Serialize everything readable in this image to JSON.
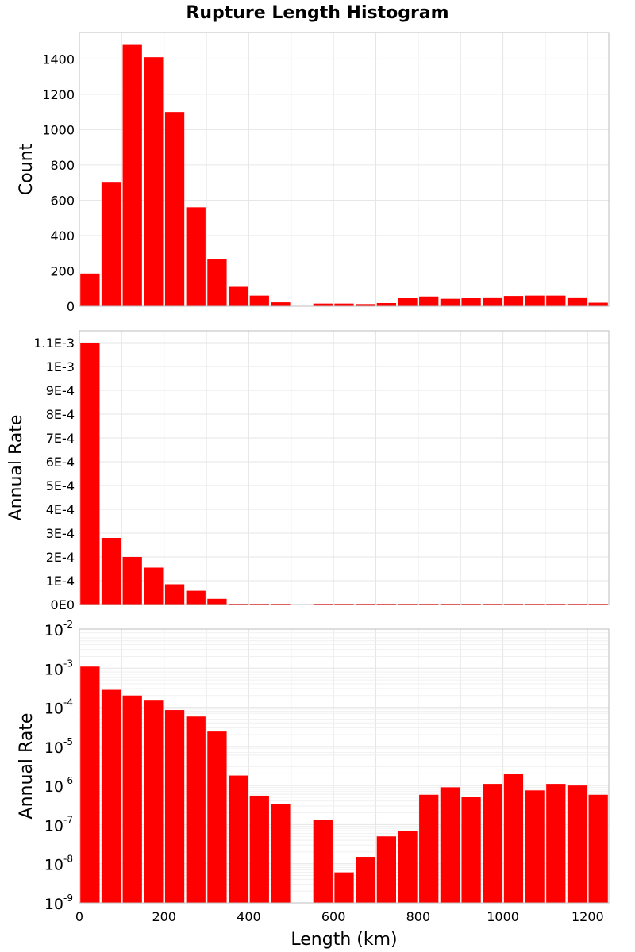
{
  "title": "Rupture Length Histogram",
  "colors": {
    "bar": "#ff0000",
    "grid": "#e6e6e6",
    "frame": "#bdbdbd"
  },
  "chart_data": [
    {
      "type": "bar",
      "name": "count-panel",
      "ylabel": "Count",
      "xlabel": "",
      "bin_width": 50,
      "x": [
        0,
        50,
        100,
        150,
        200,
        250,
        300,
        350,
        400,
        450,
        500,
        550,
        600,
        650,
        700,
        750,
        800,
        850,
        900,
        950,
        1000,
        1050,
        1100,
        1150,
        1200
      ],
      "values": [
        185,
        700,
        1480,
        1410,
        1100,
        560,
        265,
        110,
        60,
        22,
        0,
        15,
        15,
        12,
        18,
        45,
        55,
        42,
        45,
        50,
        58,
        60,
        60,
        50,
        20
      ],
      "xlim": [
        0,
        1250
      ],
      "ylim": [
        0,
        1550
      ],
      "yticks": [
        0,
        200,
        400,
        600,
        800,
        1000,
        1200,
        1400
      ],
      "ytick_labels": [
        "0",
        "200",
        "400",
        "600",
        "800",
        "1000",
        "1200",
        "1400"
      ],
      "yscale": "linear"
    },
    {
      "type": "bar",
      "name": "rate-linear-panel",
      "ylabel": "Annual Rate",
      "xlabel": "",
      "bin_width": 50,
      "x": [
        0,
        50,
        100,
        150,
        200,
        250,
        300,
        350,
        400,
        450,
        500,
        550,
        600,
        650,
        700,
        750,
        800,
        850,
        900,
        950,
        1000,
        1050,
        1100,
        1150,
        1200
      ],
      "values": [
        0.0011,
        0.00028,
        0.0002,
        0.000155,
        8.5e-05,
        5.8e-05,
        2.4e-05,
        1.8e-06,
        5.5e-07,
        3.3e-07,
        0,
        1.3e-07,
        6e-09,
        1.5e-08,
        5e-08,
        7e-08,
        5.8e-07,
        9e-07,
        5.2e-07,
        1.1e-06,
        2e-06,
        7.5e-07,
        1.1e-06,
        1e-06,
        5.8e-07
      ],
      "xlim": [
        0,
        1250
      ],
      "ylim": [
        0,
        0.00115
      ],
      "yticks": [
        0,
        0.0001,
        0.0002,
        0.0003,
        0.0004,
        0.0005,
        0.0006,
        0.0007,
        0.0008,
        0.0009,
        0.001,
        0.0011
      ],
      "ytick_labels": [
        "0E0",
        "1E-4",
        "2E-4",
        "3E-4",
        "4E-4",
        "5E-4",
        "6E-4",
        "7E-4",
        "8E-4",
        "9E-4",
        "1E-3",
        "1.1E-3"
      ],
      "yscale": "linear"
    },
    {
      "type": "bar",
      "name": "rate-log-panel",
      "ylabel": "Annual Rate",
      "xlabel": "Length (km)",
      "bin_width": 50,
      "x": [
        0,
        50,
        100,
        150,
        200,
        250,
        300,
        350,
        400,
        450,
        500,
        550,
        600,
        650,
        700,
        750,
        800,
        850,
        900,
        950,
        1000,
        1050,
        1100,
        1150,
        1200
      ],
      "values": [
        0.0011,
        0.00028,
        0.0002,
        0.000155,
        8.5e-05,
        5.8e-05,
        2.4e-05,
        1.8e-06,
        5.5e-07,
        3.3e-07,
        0,
        1.3e-07,
        6e-09,
        1.5e-08,
        5e-08,
        7e-08,
        5.8e-07,
        9e-07,
        5.2e-07,
        1.1e-06,
        2e-06,
        7.5e-07,
        1.1e-06,
        1e-06,
        5.8e-07
      ],
      "xlim": [
        0,
        1250
      ],
      "ylim": [
        1e-09,
        0.01
      ],
      "ytick_exponents": [
        "-9",
        "-8",
        "-7",
        "-6",
        "-5",
        "-4",
        "-3",
        "-2"
      ],
      "ytick_base": "10",
      "yscale": "log",
      "xticks": [
        0,
        200,
        400,
        600,
        800,
        1000,
        1200
      ],
      "xtick_labels": [
        "0",
        "200",
        "400",
        "600",
        "800",
        "1000",
        "1200"
      ]
    }
  ]
}
